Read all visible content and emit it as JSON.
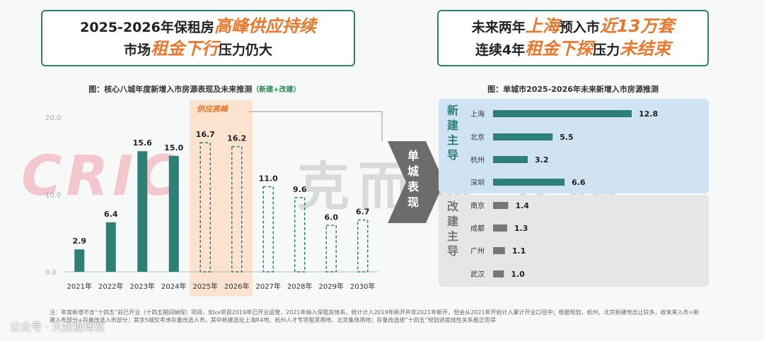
{
  "headline_left": {
    "line1_prefix": "2025-2026年保租房",
    "line1_highlight": "高峰供应持续",
    "line2_prefix": "市场",
    "line2_highlight": "租金下行",
    "line2_suffix": "压力仍大"
  },
  "headline_right": {
    "line1_prefix": "未来两年",
    "line1_highlight1": "上海",
    "line1_mid": "预入市",
    "line1_highlight2": "近13万套",
    "line2_prefix": "连续4年",
    "line2_highlight1": "租金下探",
    "line2_mid": "压力",
    "line2_highlight2": "未结束"
  },
  "colors": {
    "accent_green": "#2e7f75",
    "orange": "#e9772c",
    "peak_band": "#fbe3cf",
    "grey_bar": "#777777",
    "blue_panel": "#cfe3f3"
  },
  "chart_data": [
    {
      "type": "bar",
      "title": "图：核心八城年度新增入市房源表现及未来推测",
      "title_note": "（新建+改建）",
      "categories": [
        "2021年",
        "2022年",
        "2023年",
        "2024年",
        "2025年",
        "2026年",
        "2027年",
        "2028年",
        "2029年",
        "2030年"
      ],
      "values": [
        2.9,
        6.4,
        15.6,
        15.0,
        16.7,
        16.2,
        11.0,
        9.6,
        6.0,
        6.7
      ],
      "value_labels": [
        "2.9",
        "6.4",
        "15.6",
        "15.0",
        "16.7",
        "16.2",
        "11.0",
        "9.6",
        "6.0",
        "6.7"
      ],
      "styles": [
        "solid",
        "solid",
        "solid",
        "solid",
        "dashed",
        "dashed",
        "dashed",
        "dashed",
        "dashed",
        "dashed"
      ],
      "yticks": [
        "20.0",
        "10.0",
        "0.0"
      ],
      "ylim": [
        0,
        20
      ],
      "annotation": "供应高峰",
      "annotation_categories": [
        "2025年",
        "2026年"
      ]
    },
    {
      "type": "bar",
      "orientation": "horizontal",
      "title": "图：单城市2025-2026年未来新增入市房源推测",
      "categories": [
        "上海",
        "北京",
        "杭州",
        "深圳",
        "南京",
        "成都",
        "广州",
        "武汉"
      ],
      "values": [
        12.8,
        5.5,
        3.2,
        6.6,
        1.4,
        1.3,
        1.1,
        1.0
      ],
      "value_labels": [
        "12.8",
        "5.5",
        "3.2",
        "6.6",
        "1.4",
        "1.3",
        "1.1",
        "1.0"
      ],
      "groups": [
        {
          "label": "新建主导",
          "categories": [
            "上海",
            "北京",
            "杭州",
            "深圳"
          ]
        },
        {
          "label": "改建主导",
          "categories": [
            "南京",
            "成都",
            "广州",
            "武汉"
          ]
        }
      ]
    }
  ],
  "connector_label": "单城表现",
  "watermark": {
    "brand": "CRIC",
    "name": "克而瑞·长租"
  },
  "footnote": "注：年度新增不含“十四五”前已开业（十四五期间纳保）项目，如xx项目2019年已开业运营，2021年纳入保租房体系，统计计入2019年新开并非2021年新开，但会从2021年开始计入累计开业口径中；根据规划，杭州、北京新建地出让较多，故未来入市=新建入市部分+存量改选入市部分；其余5城仅考虑存量改选入市。其中新建选址上海R4地、杭州人才专项租赁用地、北京集体用地；存量改选按“十四五”规划进度线性关系推正而得",
  "wechat_label": "公众号 · 大数据博览"
}
